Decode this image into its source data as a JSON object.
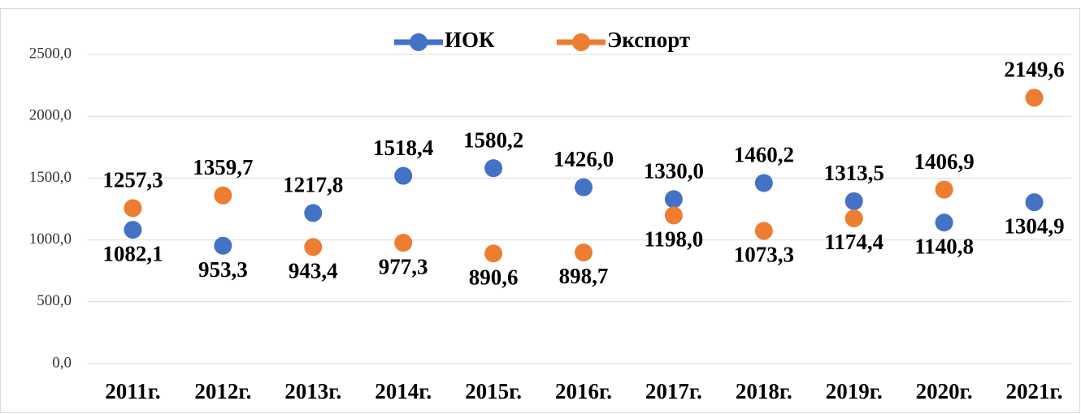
{
  "chart_data": {
    "type": "line",
    "categories": [
      "2011г.",
      "2012г.",
      "2013г.",
      "2014г.",
      "2015г.",
      "2016г.",
      "2017г.",
      "2018г.",
      "2019г.",
      "2020г.",
      "2021г."
    ],
    "series": [
      {
        "name": "ИОК",
        "color": "#4472c4",
        "values": [
          1082.1,
          953.3,
          1217.8,
          1518.4,
          1580.2,
          1426.0,
          1330.0,
          1460.2,
          1313.5,
          1140.8,
          1304.9
        ],
        "value_labels": [
          "1082,1",
          "953,3",
          "1217,8",
          "1518,4",
          "1580,2",
          "1426,0",
          "1330,0",
          "1460,2",
          "1313,5",
          "1140,8",
          "1304,9"
        ]
      },
      {
        "name": "Экспорт",
        "color": "#ed7d31",
        "values": [
          1257.3,
          1359.7,
          943.4,
          977.3,
          890.6,
          898.7,
          1198.0,
          1073.3,
          1174.4,
          1406.9,
          2149.6
        ],
        "value_labels": [
          "1257,3",
          "1359,7",
          "943,4",
          "977,3",
          "890,6",
          "898,7",
          "1198,0",
          "1073,3",
          "1174,4",
          "1406,9",
          "2149,6"
        ]
      }
    ],
    "ylim": [
      0,
      2500
    ],
    "yticks": [
      {
        "value": 0,
        "label": "0,0"
      },
      {
        "value": 500,
        "label": "500,0"
      },
      {
        "value": 1000,
        "label": "1000,0"
      },
      {
        "value": 1500,
        "label": "1500,0"
      },
      {
        "value": 2000,
        "label": "2000,0"
      },
      {
        "value": 2500,
        "label": "2500,0"
      }
    ],
    "grid": true,
    "legend": "top"
  }
}
